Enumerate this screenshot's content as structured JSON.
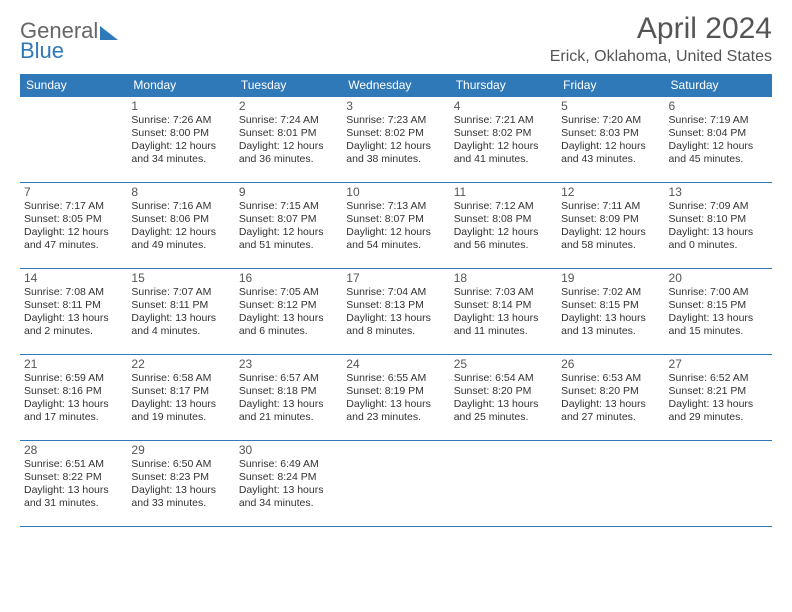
{
  "brand": {
    "word1": "General",
    "word2": "Blue"
  },
  "title": "April 2024",
  "location": "Erick, Oklahoma, United States",
  "colors": {
    "accent": "#2f79b9",
    "text": "#333333",
    "heading": "#555555",
    "background": "#ffffff"
  },
  "day_headers": [
    "Sunday",
    "Monday",
    "Tuesday",
    "Wednesday",
    "Thursday",
    "Friday",
    "Saturday"
  ],
  "weeks": [
    [
      null,
      {
        "n": "1",
        "sr": "Sunrise: 7:26 AM",
        "ss": "Sunset: 8:00 PM",
        "d1": "Daylight: 12 hours",
        "d2": "and 34 minutes."
      },
      {
        "n": "2",
        "sr": "Sunrise: 7:24 AM",
        "ss": "Sunset: 8:01 PM",
        "d1": "Daylight: 12 hours",
        "d2": "and 36 minutes."
      },
      {
        "n": "3",
        "sr": "Sunrise: 7:23 AM",
        "ss": "Sunset: 8:02 PM",
        "d1": "Daylight: 12 hours",
        "d2": "and 38 minutes."
      },
      {
        "n": "4",
        "sr": "Sunrise: 7:21 AM",
        "ss": "Sunset: 8:02 PM",
        "d1": "Daylight: 12 hours",
        "d2": "and 41 minutes."
      },
      {
        "n": "5",
        "sr": "Sunrise: 7:20 AM",
        "ss": "Sunset: 8:03 PM",
        "d1": "Daylight: 12 hours",
        "d2": "and 43 minutes."
      },
      {
        "n": "6",
        "sr": "Sunrise: 7:19 AM",
        "ss": "Sunset: 8:04 PM",
        "d1": "Daylight: 12 hours",
        "d2": "and 45 minutes."
      }
    ],
    [
      {
        "n": "7",
        "sr": "Sunrise: 7:17 AM",
        "ss": "Sunset: 8:05 PM",
        "d1": "Daylight: 12 hours",
        "d2": "and 47 minutes."
      },
      {
        "n": "8",
        "sr": "Sunrise: 7:16 AM",
        "ss": "Sunset: 8:06 PM",
        "d1": "Daylight: 12 hours",
        "d2": "and 49 minutes."
      },
      {
        "n": "9",
        "sr": "Sunrise: 7:15 AM",
        "ss": "Sunset: 8:07 PM",
        "d1": "Daylight: 12 hours",
        "d2": "and 51 minutes."
      },
      {
        "n": "10",
        "sr": "Sunrise: 7:13 AM",
        "ss": "Sunset: 8:07 PM",
        "d1": "Daylight: 12 hours",
        "d2": "and 54 minutes."
      },
      {
        "n": "11",
        "sr": "Sunrise: 7:12 AM",
        "ss": "Sunset: 8:08 PM",
        "d1": "Daylight: 12 hours",
        "d2": "and 56 minutes."
      },
      {
        "n": "12",
        "sr": "Sunrise: 7:11 AM",
        "ss": "Sunset: 8:09 PM",
        "d1": "Daylight: 12 hours",
        "d2": "and 58 minutes."
      },
      {
        "n": "13",
        "sr": "Sunrise: 7:09 AM",
        "ss": "Sunset: 8:10 PM",
        "d1": "Daylight: 13 hours",
        "d2": "and 0 minutes."
      }
    ],
    [
      {
        "n": "14",
        "sr": "Sunrise: 7:08 AM",
        "ss": "Sunset: 8:11 PM",
        "d1": "Daylight: 13 hours",
        "d2": "and 2 minutes."
      },
      {
        "n": "15",
        "sr": "Sunrise: 7:07 AM",
        "ss": "Sunset: 8:11 PM",
        "d1": "Daylight: 13 hours",
        "d2": "and 4 minutes."
      },
      {
        "n": "16",
        "sr": "Sunrise: 7:05 AM",
        "ss": "Sunset: 8:12 PM",
        "d1": "Daylight: 13 hours",
        "d2": "and 6 minutes."
      },
      {
        "n": "17",
        "sr": "Sunrise: 7:04 AM",
        "ss": "Sunset: 8:13 PM",
        "d1": "Daylight: 13 hours",
        "d2": "and 8 minutes."
      },
      {
        "n": "18",
        "sr": "Sunrise: 7:03 AM",
        "ss": "Sunset: 8:14 PM",
        "d1": "Daylight: 13 hours",
        "d2": "and 11 minutes."
      },
      {
        "n": "19",
        "sr": "Sunrise: 7:02 AM",
        "ss": "Sunset: 8:15 PM",
        "d1": "Daylight: 13 hours",
        "d2": "and 13 minutes."
      },
      {
        "n": "20",
        "sr": "Sunrise: 7:00 AM",
        "ss": "Sunset: 8:15 PM",
        "d1": "Daylight: 13 hours",
        "d2": "and 15 minutes."
      }
    ],
    [
      {
        "n": "21",
        "sr": "Sunrise: 6:59 AM",
        "ss": "Sunset: 8:16 PM",
        "d1": "Daylight: 13 hours",
        "d2": "and 17 minutes."
      },
      {
        "n": "22",
        "sr": "Sunrise: 6:58 AM",
        "ss": "Sunset: 8:17 PM",
        "d1": "Daylight: 13 hours",
        "d2": "and 19 minutes."
      },
      {
        "n": "23",
        "sr": "Sunrise: 6:57 AM",
        "ss": "Sunset: 8:18 PM",
        "d1": "Daylight: 13 hours",
        "d2": "and 21 minutes."
      },
      {
        "n": "24",
        "sr": "Sunrise: 6:55 AM",
        "ss": "Sunset: 8:19 PM",
        "d1": "Daylight: 13 hours",
        "d2": "and 23 minutes."
      },
      {
        "n": "25",
        "sr": "Sunrise: 6:54 AM",
        "ss": "Sunset: 8:20 PM",
        "d1": "Daylight: 13 hours",
        "d2": "and 25 minutes."
      },
      {
        "n": "26",
        "sr": "Sunrise: 6:53 AM",
        "ss": "Sunset: 8:20 PM",
        "d1": "Daylight: 13 hours",
        "d2": "and 27 minutes."
      },
      {
        "n": "27",
        "sr": "Sunrise: 6:52 AM",
        "ss": "Sunset: 8:21 PM",
        "d1": "Daylight: 13 hours",
        "d2": "and 29 minutes."
      }
    ],
    [
      {
        "n": "28",
        "sr": "Sunrise: 6:51 AM",
        "ss": "Sunset: 8:22 PM",
        "d1": "Daylight: 13 hours",
        "d2": "and 31 minutes."
      },
      {
        "n": "29",
        "sr": "Sunrise: 6:50 AM",
        "ss": "Sunset: 8:23 PM",
        "d1": "Daylight: 13 hours",
        "d2": "and 33 minutes."
      },
      {
        "n": "30",
        "sr": "Sunrise: 6:49 AM",
        "ss": "Sunset: 8:24 PM",
        "d1": "Daylight: 13 hours",
        "d2": "and 34 minutes."
      },
      null,
      null,
      null,
      null
    ]
  ]
}
